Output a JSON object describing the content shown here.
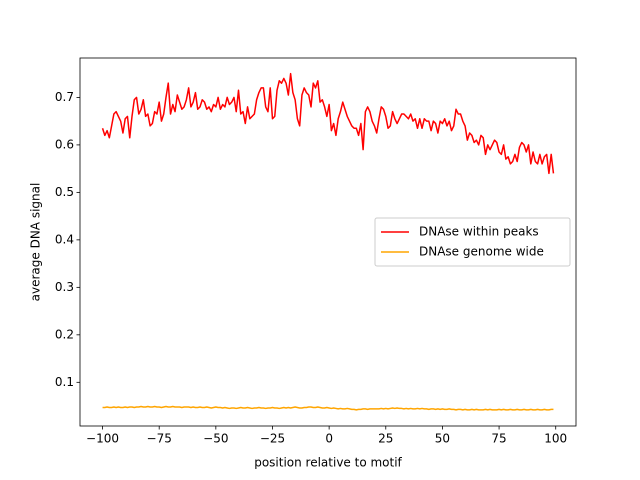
{
  "chart_data": {
    "type": "line",
    "xlabel": "position relative to motif",
    "ylabel": "average DNA signal",
    "x": [
      -100,
      -99,
      -98,
      -97,
      -96,
      -95,
      -94,
      -93,
      -92,
      -91,
      -90,
      -89,
      -88,
      -87,
      -86,
      -85,
      -84,
      -83,
      -82,
      -81,
      -80,
      -79,
      -78,
      -77,
      -76,
      -75,
      -74,
      -73,
      -72,
      -71,
      -70,
      -69,
      -68,
      -67,
      -66,
      -65,
      -64,
      -63,
      -62,
      -61,
      -60,
      -59,
      -58,
      -57,
      -56,
      -55,
      -54,
      -53,
      -52,
      -51,
      -50,
      -49,
      -48,
      -47,
      -46,
      -45,
      -44,
      -43,
      -42,
      -41,
      -40,
      -39,
      -38,
      -37,
      -36,
      -35,
      -34,
      -33,
      -32,
      -31,
      -30,
      -29,
      -28,
      -27,
      -26,
      -25,
      -24,
      -23,
      -22,
      -21,
      -20,
      -19,
      -18,
      -17,
      -16,
      -15,
      -14,
      -13,
      -12,
      -11,
      -10,
      -9,
      -8,
      -7,
      -6,
      -5,
      -4,
      -3,
      -2,
      -1,
      0,
      1,
      2,
      3,
      4,
      5,
      6,
      7,
      8,
      9,
      10,
      11,
      12,
      13,
      14,
      15,
      16,
      17,
      18,
      19,
      20,
      21,
      22,
      23,
      24,
      25,
      26,
      27,
      28,
      29,
      30,
      31,
      32,
      33,
      34,
      35,
      36,
      37,
      38,
      39,
      40,
      41,
      42,
      43,
      44,
      45,
      46,
      47,
      48,
      49,
      50,
      51,
      52,
      53,
      54,
      55,
      56,
      57,
      58,
      59,
      60,
      61,
      62,
      63,
      64,
      65,
      66,
      67,
      68,
      69,
      70,
      71,
      72,
      73,
      74,
      75,
      76,
      77,
      78,
      79,
      80,
      81,
      82,
      83,
      84,
      85,
      86,
      87,
      88,
      89,
      90,
      91,
      92,
      93,
      94,
      95,
      96,
      97,
      98,
      99
    ],
    "series": [
      {
        "name": "DNAse within peaks",
        "color": "#ff0000",
        "values": [
          0.635,
          0.62,
          0.63,
          0.615,
          0.64,
          0.665,
          0.67,
          0.66,
          0.65,
          0.625,
          0.655,
          0.66,
          0.615,
          0.66,
          0.695,
          0.7,
          0.665,
          0.675,
          0.695,
          0.66,
          0.665,
          0.64,
          0.645,
          0.67,
          0.665,
          0.69,
          0.65,
          0.665,
          0.7,
          0.73,
          0.665,
          0.685,
          0.67,
          0.705,
          0.69,
          0.675,
          0.68,
          0.695,
          0.72,
          0.68,
          0.69,
          0.71,
          0.675,
          0.68,
          0.695,
          0.69,
          0.675,
          0.68,
          0.67,
          0.685,
          0.68,
          0.7,
          0.675,
          0.685,
          0.68,
          0.7,
          0.685,
          0.69,
          0.7,
          0.67,
          0.715,
          0.665,
          0.67,
          0.645,
          0.68,
          0.655,
          0.66,
          0.665,
          0.695,
          0.71,
          0.72,
          0.72,
          0.68,
          0.67,
          0.72,
          0.655,
          0.66,
          0.715,
          0.735,
          0.73,
          0.74,
          0.73,
          0.705,
          0.75,
          0.71,
          0.695,
          0.655,
          0.64,
          0.705,
          0.72,
          0.71,
          0.705,
          0.68,
          0.73,
          0.72,
          0.735,
          0.69,
          0.695,
          0.68,
          0.66,
          0.685,
          0.63,
          0.645,
          0.62,
          0.655,
          0.67,
          0.69,
          0.675,
          0.66,
          0.65,
          0.64,
          0.635,
          0.635,
          0.62,
          0.645,
          0.59,
          0.67,
          0.68,
          0.67,
          0.65,
          0.64,
          0.625,
          0.655,
          0.68,
          0.675,
          0.66,
          0.635,
          0.64,
          0.67,
          0.655,
          0.645,
          0.655,
          0.665,
          0.665,
          0.66,
          0.655,
          0.665,
          0.65,
          0.655,
          0.635,
          0.655,
          0.635,
          0.655,
          0.65,
          0.65,
          0.63,
          0.65,
          0.645,
          0.625,
          0.65,
          0.645,
          0.655,
          0.64,
          0.65,
          0.63,
          0.64,
          0.675,
          0.665,
          0.665,
          0.65,
          0.64,
          0.61,
          0.625,
          0.62,
          0.605,
          0.61,
          0.6,
          0.62,
          0.615,
          0.58,
          0.6,
          0.59,
          0.6,
          0.61,
          0.605,
          0.585,
          0.58,
          0.6,
          0.57,
          0.575,
          0.56,
          0.565,
          0.58,
          0.565,
          0.595,
          0.605,
          0.6,
          0.585,
          0.6,
          0.56,
          0.585,
          0.565,
          0.56,
          0.58,
          0.56,
          0.575,
          0.58,
          0.54,
          0.58,
          0.54
        ]
      },
      {
        "name": "DNAse genome wide",
        "color": "#ffa500",
        "values": [
          0.047,
          0.047,
          0.048,
          0.047,
          0.047,
          0.048,
          0.047,
          0.048,
          0.047,
          0.047,
          0.048,
          0.047,
          0.048,
          0.048,
          0.047,
          0.048,
          0.048,
          0.049,
          0.048,
          0.048,
          0.049,
          0.048,
          0.048,
          0.049,
          0.048,
          0.048,
          0.047,
          0.048,
          0.049,
          0.048,
          0.048,
          0.049,
          0.048,
          0.048,
          0.048,
          0.047,
          0.048,
          0.048,
          0.048,
          0.047,
          0.048,
          0.047,
          0.047,
          0.048,
          0.047,
          0.047,
          0.048,
          0.047,
          0.046,
          0.047,
          0.048,
          0.047,
          0.047,
          0.046,
          0.047,
          0.046,
          0.045,
          0.046,
          0.046,
          0.045,
          0.046,
          0.047,
          0.046,
          0.046,
          0.047,
          0.046,
          0.045,
          0.046,
          0.046,
          0.047,
          0.046,
          0.046,
          0.045,
          0.046,
          0.046,
          0.047,
          0.046,
          0.046,
          0.045,
          0.046,
          0.047,
          0.046,
          0.047,
          0.046,
          0.047,
          0.048,
          0.047,
          0.046,
          0.046,
          0.047,
          0.047,
          0.048,
          0.048,
          0.047,
          0.047,
          0.048,
          0.047,
          0.046,
          0.046,
          0.047,
          0.046,
          0.045,
          0.046,
          0.045,
          0.044,
          0.045,
          0.044,
          0.044,
          0.045,
          0.044,
          0.043,
          0.043,
          0.042,
          0.043,
          0.043,
          0.044,
          0.044,
          0.043,
          0.044,
          0.044,
          0.044,
          0.044,
          0.044,
          0.045,
          0.044,
          0.045,
          0.044,
          0.045,
          0.046,
          0.045,
          0.046,
          0.045,
          0.045,
          0.044,
          0.045,
          0.044,
          0.045,
          0.044,
          0.044,
          0.045,
          0.044,
          0.045,
          0.044,
          0.044,
          0.043,
          0.044,
          0.044,
          0.043,
          0.044,
          0.043,
          0.044,
          0.043,
          0.043,
          0.044,
          0.043,
          0.043,
          0.042,
          0.043,
          0.043,
          0.042,
          0.043,
          0.042,
          0.042,
          0.043,
          0.042,
          0.043,
          0.042,
          0.042,
          0.042,
          0.043,
          0.042,
          0.043,
          0.042,
          0.042,
          0.042,
          0.043,
          0.042,
          0.043,
          0.042,
          0.042,
          0.043,
          0.042,
          0.042,
          0.043,
          0.042,
          0.042,
          0.043,
          0.042,
          0.042,
          0.043,
          0.042,
          0.042,
          0.043,
          0.042,
          0.042,
          0.043,
          0.042,
          0.042,
          0.043,
          0.043
        ]
      }
    ],
    "xlim": [
      -109.95,
      108.95
    ],
    "ylim": [
      0.008,
      0.783
    ],
    "xticks": [
      {
        "value": -100,
        "label": "−100"
      },
      {
        "value": -75,
        "label": "−75"
      },
      {
        "value": -50,
        "label": "−50"
      },
      {
        "value": -25,
        "label": "−25"
      },
      0,
      25,
      50,
      75,
      100
    ],
    "yticks": [
      0.1,
      0.2,
      0.3,
      0.4,
      0.5,
      0.6,
      0.7
    ],
    "grid": false,
    "legend": "center right"
  }
}
